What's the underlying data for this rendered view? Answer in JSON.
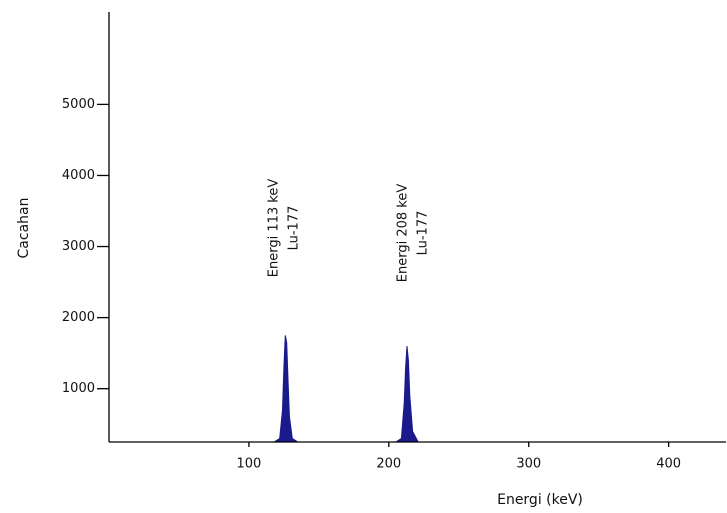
{
  "chart_data": {
    "type": "area",
    "xlabel": "Energi (keV)",
    "ylabel": "Cacahan",
    "annotations": [
      [
        "Energi 113 keV",
        "Lu-177"
      ],
      [
        "Energi 208 keV",
        "Lu-177"
      ]
    ],
    "series": [
      {
        "color": "#1a1a8c",
        "x": [
          0,
          118,
          122,
          124,
          125,
          126,
          127,
          128,
          129,
          131,
          135,
          205,
          209,
          211,
          212,
          213,
          214,
          215,
          217,
          221,
          441
        ],
        "values": [
          250,
          250,
          300,
          700,
          1300,
          1750,
          1650,
          1100,
          600,
          300,
          250,
          250,
          300,
          800,
          1300,
          1600,
          1400,
          900,
          400,
          250,
          250
        ]
      }
    ],
    "xlim": [
      0,
      441
    ],
    "xticks": [
      100,
      200,
      300,
      400
    ],
    "ylim": [
      250,
      6300
    ],
    "yticks": [
      1000,
      2000,
      3000,
      4000,
      5000
    ]
  }
}
